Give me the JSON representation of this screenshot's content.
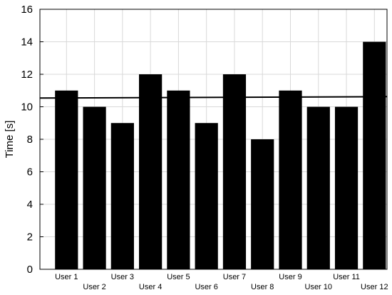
{
  "chart_data": {
    "type": "bar",
    "categories": [
      "User 1",
      "User 2",
      "User 3",
      "User 4",
      "User 5",
      "User 6",
      "User 7",
      "User 8",
      "User 9",
      "User 10",
      "User 11",
      "User 12"
    ],
    "values": [
      11,
      10,
      9,
      12,
      11,
      9,
      12,
      8,
      11,
      10,
      10,
      14
    ],
    "reference_line": 10.58,
    "title": "",
    "xlabel": "",
    "ylabel": "Time [s]",
    "ylim": [
      0,
      16
    ],
    "yticks": [
      0,
      2,
      4,
      6,
      8,
      10,
      12,
      14,
      16
    ],
    "grid": true,
    "bar_color": "#000000",
    "grid_color": "#d9d9d9"
  }
}
